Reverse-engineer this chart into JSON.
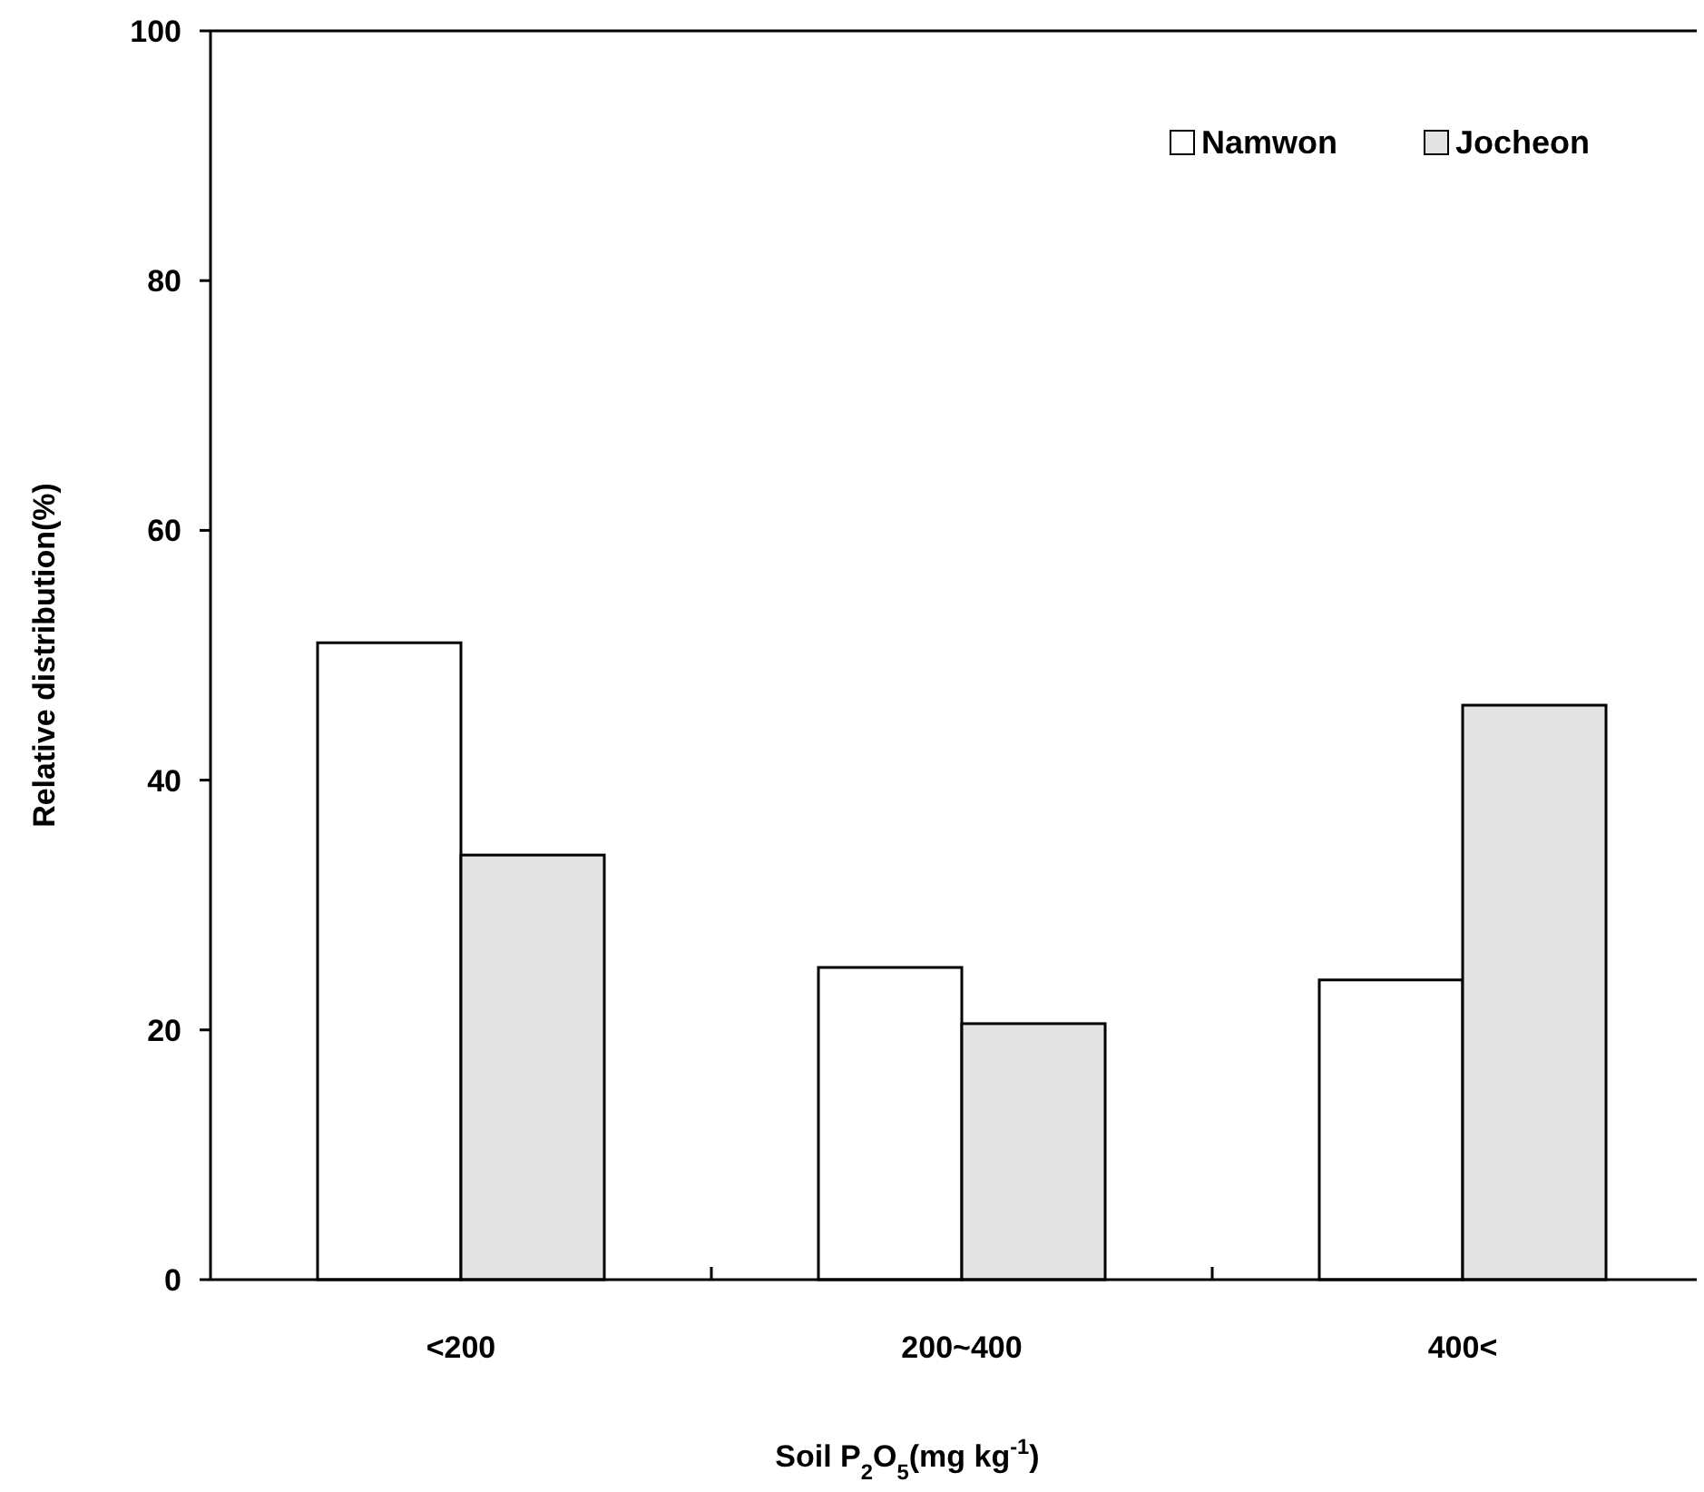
{
  "chart_data": {
    "type": "bar",
    "xlabel": "Soil P$_{2}$O$_{5}$(mg kg$^{-1}$)",
    "ylabel": "Relative distribution(%)",
    "categories": [
      "<200",
      "200~400",
      "400<"
    ],
    "series": [
      {
        "name": "Namwon",
        "color": "#ffffff",
        "values": [
          51,
          25,
          24
        ]
      },
      {
        "name": "Jocheon",
        "color": "#e3e3e3",
        "values": [
          34,
          20.5,
          46
        ]
      }
    ],
    "ylim": [
      0,
      100
    ],
    "yticks": [
      0,
      20,
      40,
      60,
      80,
      100
    ],
    "legend": "top right",
    "grid": false
  }
}
